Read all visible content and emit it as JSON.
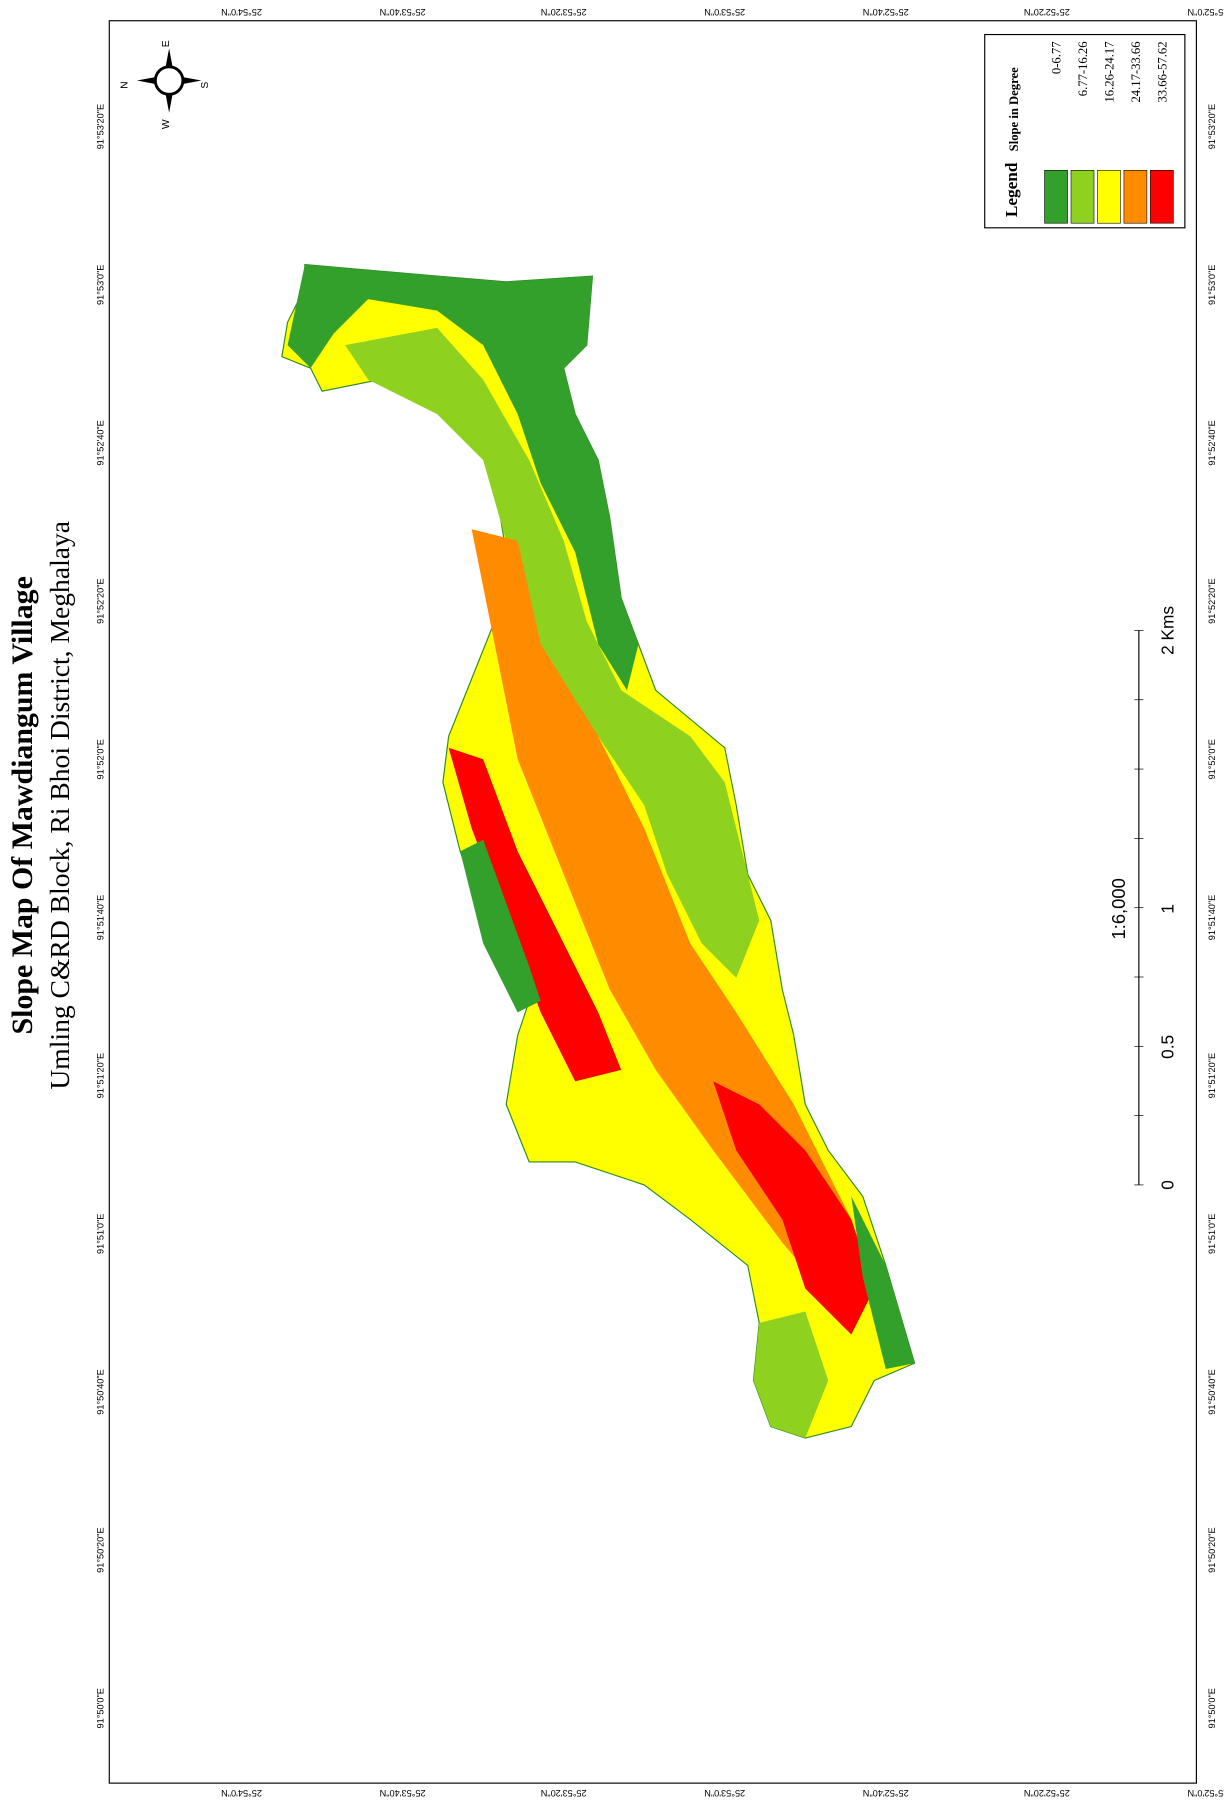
{
  "title": "Slope Map Of Mawdiangum Village",
  "subtitle": "Umling C&RD Block, Ri Bhoi District, Meghalaya",
  "legend": {
    "title": "Legend",
    "heading": "Slope in Degree",
    "items": [
      {
        "label": "0-6.77",
        "color": "#33a02c"
      },
      {
        "label": "6.77-16.26",
        "color": "#8fd11f"
      },
      {
        "label": "16.26-24.17",
        "color": "#ffff00"
      },
      {
        "label": "24.17-33.66",
        "color": "#ff8c00"
      },
      {
        "label": "33.66-57.62",
        "color": "#ff0000"
      }
    ]
  },
  "scale": {
    "ratio": "1:6,000",
    "labels": [
      "0",
      "0.5",
      "1",
      "2 Kms"
    ]
  },
  "compass": {
    "n": "N",
    "e": "E",
    "s": "S",
    "w": "W"
  },
  "latitudes": [
    "25°54'0\"N",
    "25°53'40\"N",
    "25°53'20\"N",
    "25°53'0\"N",
    "25°52'40\"N",
    "25°52'20\"N",
    "25°52'0\"N"
  ],
  "longitudes": [
    "91°53'20\"E",
    "91°53'0\"E",
    "91°52'40\"E",
    "91°52'20\"E",
    "91°52'0\"E",
    "91°51'40\"E",
    "91°51'20\"E",
    "91°51'0\"E",
    "91°50'40\"E",
    "91°50'20\"E",
    "91°50'0\"E"
  ]
}
